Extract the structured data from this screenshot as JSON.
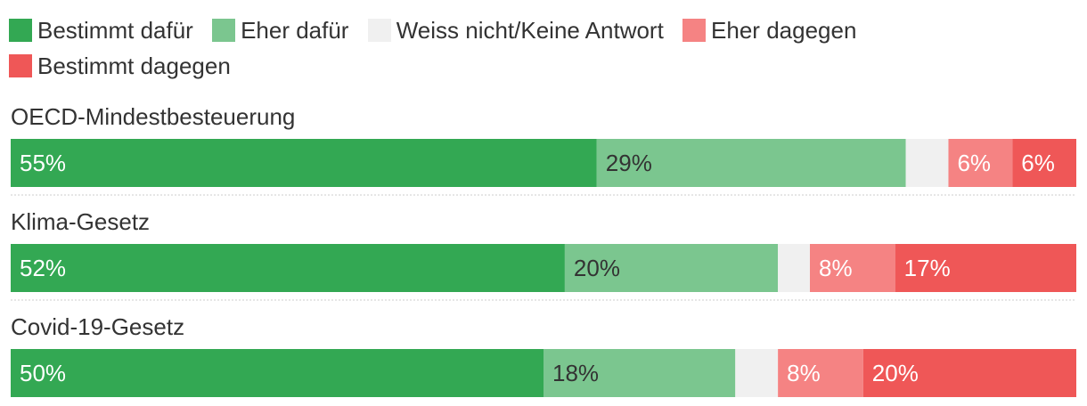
{
  "chart_data": {
    "type": "bar",
    "orientation": "horizontal",
    "stacked": true,
    "normalized": true,
    "legend_position": "top",
    "categories": [
      "OECD-Mindestbesteuerung",
      "Klima-Gesetz",
      "Covid-19-Gesetz"
    ],
    "series": [
      {
        "name": "Bestimmt dafür",
        "color": "#33a853",
        "values": [
          55,
          52,
          50
        ],
        "labels": [
          "55%",
          "52%",
          "50%"
        ],
        "label_color": "#ffffff"
      },
      {
        "name": "Eher dafür",
        "color": "#7bc68f",
        "values": [
          29,
          20,
          18
        ],
        "labels": [
          "29%",
          "20%",
          "18%"
        ],
        "label_color": "#333333"
      },
      {
        "name": "Weiss nicht/Keine Antwort",
        "color": "#f0f0f0",
        "values": [
          4,
          3,
          4
        ],
        "labels": [
          "",
          "",
          ""
        ],
        "label_color": "#333333"
      },
      {
        "name": "Eher dagegen",
        "color": "#f58383",
        "values": [
          6,
          8,
          8
        ],
        "labels": [
          "6%",
          "8%",
          "8%"
        ],
        "label_color": "#ffffff"
      },
      {
        "name": "Bestimmt dagegen",
        "color": "#ef5757",
        "values": [
          6,
          17,
          20
        ],
        "labels": [
          "6%",
          "17%",
          "20%"
        ],
        "label_color": "#ffffff"
      }
    ]
  }
}
